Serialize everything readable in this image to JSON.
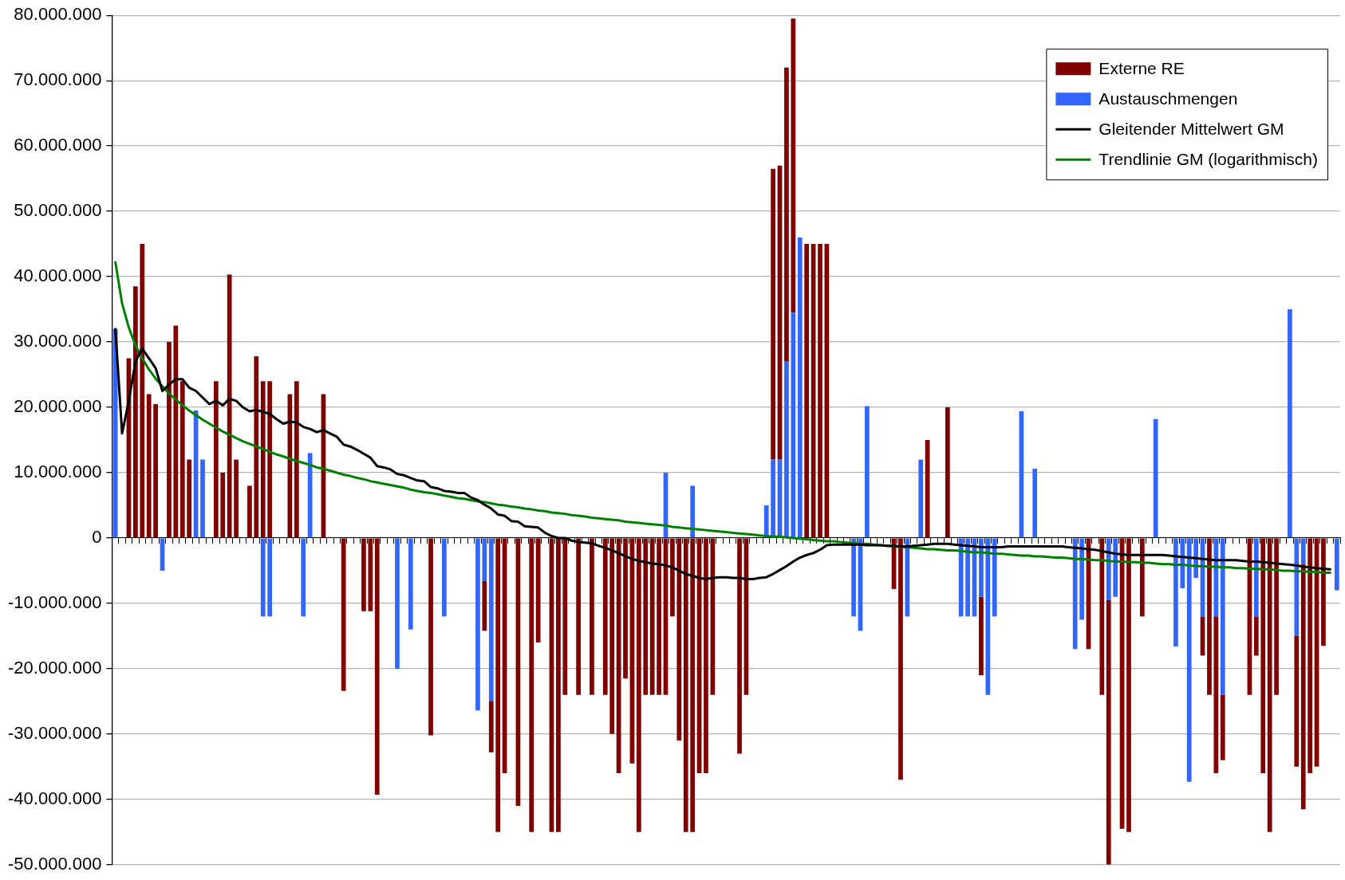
{
  "chart_data": {
    "type": "bar",
    "stacked": true,
    "categories": [
      null,
      null,
      null,
      null,
      null,
      null,
      null,
      null,
      null,
      null,
      null,
      null,
      null,
      null,
      null,
      null,
      null,
      null,
      null,
      null,
      null,
      null,
      null,
      null,
      null,
      null,
      null,
      null,
      null,
      null,
      null,
      null,
      null,
      null,
      null,
      null,
      null,
      null,
      null,
      null,
      null,
      null,
      null,
      null,
      null,
      null,
      null,
      null,
      null,
      null,
      null,
      null,
      null,
      null,
      null,
      null,
      null,
      null,
      null,
      null,
      null,
      null,
      null,
      null,
      null,
      null,
      null,
      null,
      null,
      null,
      null,
      null,
      null,
      null,
      null,
      null,
      null,
      null,
      null,
      null,
      null,
      null,
      null,
      null,
      null,
      null,
      null,
      null,
      null,
      null,
      null,
      null,
      null,
      null,
      null,
      null,
      null,
      null,
      null,
      null,
      null,
      null,
      null,
      null,
      null,
      null,
      null,
      null,
      null,
      null,
      null,
      null,
      null,
      null,
      null,
      null,
      null,
      null,
      null,
      null,
      null,
      null,
      null,
      null,
      null,
      null,
      null,
      null,
      null,
      null,
      null,
      null,
      null,
      null,
      null,
      null,
      null,
      null,
      null,
      null,
      null,
      null,
      null,
      null,
      null,
      null,
      null,
      null,
      null,
      null,
      null,
      null,
      null,
      null,
      null,
      null,
      null,
      null,
      null,
      null,
      null,
      null,
      null,
      null,
      null,
      null,
      null,
      null,
      null,
      null,
      null,
      null,
      null,
      null,
      null,
      null,
      null,
      null,
      null,
      null,
      null,
      null,
      null
    ],
    "series": [
      {
        "name": "Austauschmengen",
        "color": "#3366ff",
        "values": [
          32000000.0,
          null,
          null,
          null,
          null,
          null,
          null,
          -5000000.0,
          null,
          null,
          null,
          null,
          19500000.0,
          12000000.0,
          null,
          null,
          null,
          null,
          null,
          null,
          null,
          null,
          -12000000.0,
          -12000000.0,
          null,
          null,
          null,
          null,
          -12000000.0,
          13000000.0,
          null,
          null,
          null,
          null,
          null,
          null,
          null,
          null,
          null,
          null,
          null,
          null,
          -20000000.0,
          null,
          -14000000.0,
          null,
          null,
          null,
          null,
          -12000000.0,
          null,
          null,
          null,
          null,
          -26400000.0,
          -6600000.0,
          -25000000.0,
          null,
          null,
          null,
          null,
          null,
          null,
          null,
          null,
          null,
          null,
          null,
          null,
          null,
          null,
          null,
          null,
          null,
          null,
          null,
          null,
          null,
          null,
          null,
          null,
          null,
          10000000.0,
          null,
          null,
          null,
          8000000.0,
          null,
          null,
          null,
          null,
          null,
          null,
          null,
          null,
          null,
          null,
          5000000.0,
          12000000.0,
          12000000.0,
          27000000.0,
          34500000.0,
          46000000.0,
          null,
          null,
          null,
          null,
          null,
          null,
          null,
          -12000000.0,
          -14200000.0,
          20200000.0,
          null,
          null,
          null,
          null,
          null,
          -12000000.0,
          null,
          12000000.0,
          null,
          null,
          null,
          null,
          null,
          -12000000.0,
          -12000000.0,
          -12000000.0,
          -9000000.0,
          -24000000.0,
          -12000000.0,
          null,
          null,
          null,
          19400000.0,
          null,
          10600000.0,
          null,
          null,
          null,
          null,
          null,
          -17000000.0,
          -12500000.0,
          null,
          null,
          null,
          -9500000.0,
          -9000000.0,
          null,
          null,
          null,
          null,
          null,
          18200000.0,
          null,
          null,
          -16600000.0,
          -7700000.0,
          -37300000.0,
          -6100000.0,
          -12000000.0,
          null,
          -12000000.0,
          -24000000.0,
          null,
          null,
          null,
          null,
          -12000000.0,
          null,
          null,
          null,
          null,
          35000000.0,
          -15000000.0,
          -4000000.0,
          null,
          null,
          null,
          null,
          -8000000.0
        ]
      },
      {
        "name": "Externe RE",
        "color": "#800000",
        "values": [
          null,
          null,
          27500000.0,
          38500000.0,
          45000000.0,
          22000000.0,
          20500000.0,
          null,
          30000000.0,
          32500000.0,
          24000000.0,
          12000000.0,
          null,
          null,
          null,
          24000000.0,
          10000000.0,
          40300000.0,
          12000000.0,
          null,
          8000000.0,
          27800000.0,
          24000000.0,
          24000000.0,
          null,
          null,
          22000000.0,
          24000000.0,
          null,
          null,
          null,
          22000000.0,
          null,
          null,
          -23400000.0,
          null,
          null,
          -11200000.0,
          -11200000.0,
          -39300000.0,
          null,
          null,
          null,
          null,
          null,
          null,
          null,
          -30200000.0,
          null,
          null,
          null,
          null,
          null,
          null,
          null,
          -7600000.0,
          -7800000.0,
          -45000000.0,
          -36000000.0,
          null,
          -41000000.0,
          null,
          -45000000.0,
          -16000000.0,
          null,
          -45000000.0,
          -45000000.0,
          -24000000.0,
          null,
          -24000000.0,
          null,
          -24000000.0,
          null,
          -24000000.0,
          -30000000.0,
          -36000000.0,
          -21500000.0,
          -34500000.0,
          -45000000.0,
          -24000000.0,
          -24000000.0,
          -24000000.0,
          -24000000.0,
          -12000000.0,
          -31000000.0,
          -45000000.0,
          -45000000.0,
          -36000000.0,
          -36000000.0,
          -24000000.0,
          null,
          null,
          null,
          -33000000.0,
          -24000000.0,
          null,
          null,
          null,
          44500000.0,
          45000000.0,
          45000000.0,
          45000000.0,
          null,
          45000000.0,
          45000000.0,
          45000000.0,
          45000000.0,
          null,
          null,
          null,
          null,
          null,
          null,
          null,
          null,
          null,
          -7800000.0,
          -37000000.0,
          null,
          null,
          null,
          15000000.0,
          null,
          null,
          20000000.0,
          null,
          null,
          null,
          null,
          -12000000.0,
          null,
          null,
          null,
          null,
          null,
          null,
          null,
          null,
          null,
          null,
          null,
          null,
          null,
          null,
          null,
          -17000000.0,
          null,
          -24000000.0,
          -40500000.0,
          null,
          -44500000.0,
          -45000000.0,
          null,
          -12000000.0,
          null,
          null,
          null,
          null,
          null,
          null,
          null,
          null,
          -6000000.0,
          -24000000.0,
          -24000000.0,
          -10000000.0,
          null,
          null,
          null,
          -24000000.0,
          -6000000.0,
          -36000000.0,
          -45000000.0,
          -24000000.0,
          null,
          null,
          -20000000.0,
          -37500000.0,
          -36000000.0,
          -35000000.0,
          -16500000.0,
          null,
          null
        ]
      },
      {
        "name": "Gleitender Mittelwert GM",
        "type": "line",
        "color": "#000000",
        "values": [
          32000000.0,
          16000000.0,
          21000000.0,
          27000000.0,
          29000000.0,
          27500000.0,
          26000000.0,
          22500000.0,
          23500000.0,
          24300000.0,
          24300000.0,
          23000000.0,
          22500000.0,
          21500000.0,
          20500000.0,
          21000000.0,
          20300000.0,
          21300000.0,
          21000000.0,
          20000000.0,
          19400000.0,
          19600000.0,
          19300000.0,
          19000000.0,
          18200000.0,
          17500000.0,
          17800000.0,
          17700000.0,
          17000000.0,
          16700000.0,
          16200000.0,
          16500000.0,
          16000000.0,
          15500000.0,
          14300000.0,
          14000000.0,
          13500000.0,
          12900000.0,
          12300000.0,
          11000000.0,
          10800000.0,
          10500000.0,
          9800000.0,
          9600000.0,
          9200000.0,
          8800000.0,
          8700000.0,
          7800000.0,
          7600000.0,
          7200000.0,
          7100000.0,
          6900000.0,
          6900000.0,
          6200000.0,
          5800000.0,
          5100000.0,
          4500000.0,
          3600000.0,
          3400000.0,
          2600000.0,
          2500000.0,
          1800000.0,
          1700000.0,
          1600000.0,
          800000.0,
          300000.0,
          0,
          0,
          -400000.0,
          -600000.0,
          -700000.0,
          -800000.0,
          -1200000.0,
          -1500000.0,
          -1900000.0,
          -2300000.0,
          -2800000.0,
          -3200000.0,
          -3500000.0,
          -3700000.0,
          -3900000.0,
          -4000000.0,
          -4200000.0,
          -4500000.0,
          -5000000.0,
          -5500000.0,
          -5800000.0,
          -6100000.0,
          -6300000.0,
          -6100000.0,
          -6000000.0,
          -6000000.0,
          -6100000.0,
          -6100000.0,
          -6300000.0,
          -6300000.0,
          -6100000.0,
          -6000000.0,
          -5500000.0,
          -4900000.0,
          -4300000.0,
          -3600000.0,
          -3000000.0,
          -2600000.0,
          -2300000.0,
          -1800000.0,
          -1100000.0,
          -1000000.0,
          -1000000.0,
          -1000000.0,
          -1000000.0,
          -1000000.0,
          -1100000.0,
          -1100000.0,
          -1100000.0,
          -1200000.0,
          -1200000.0,
          -1300000.0,
          -1300000.0,
          -1200000.0,
          -1100000.0,
          -1000000.0,
          -900000.0,
          -900000.0,
          -900000.0,
          -1000000.0,
          -1100000.0,
          -1200000.0,
          -1300000.0,
          -1400000.0,
          -1400000.0,
          -1400000.0,
          -1400000.0,
          -1300000.0,
          -1300000.0,
          -1300000.0,
          -1300000.0,
          -1300000.0,
          -1300000.0,
          -1300000.0,
          -1300000.0,
          -1300000.0,
          -1400000.0,
          -1500000.0,
          -1600000.0,
          -1700000.0,
          -1800000.0,
          -2000000.0,
          -2200000.0,
          -2400000.0,
          -2500000.0,
          -2600000.0,
          -2600000.0,
          -2600000.0,
          -2600000.0,
          -2600000.0,
          -2600000.0,
          -2700000.0,
          -2800000.0,
          -2900000.0,
          -3000000.0,
          -3100000.0,
          -3200000.0,
          -3300000.0,
          -3400000.0,
          -3400000.0,
          -3400000.0,
          -3400000.0,
          -3500000.0,
          -3600000.0,
          -3600000.0,
          -3700000.0,
          -3800000.0,
          -3900000.0,
          -4000000.0,
          -4100000.0,
          -4200000.0,
          -4400000.0,
          -4500000.0,
          -4600000.0,
          -4700000.0,
          -4800000.0,
          null
        ]
      },
      {
        "name": "Trendlinie GM (logarithmisch)",
        "type": "line",
        "color": "#008000",
        "values": [
          42200000.0,
          35900000.0,
          32200000.0,
          29500000.0,
          27500000.0,
          25800000.0,
          24400000.0,
          23200000.0,
          22100000.0,
          21200000.0,
          20300000.0,
          19500000.0,
          18800000.0,
          18100000.0,
          17500000.0,
          16900000.0,
          16300000.0,
          15800000.0,
          15300000.0,
          14800000.0,
          14400000.0,
          14000000.0,
          13600000.0,
          13200000.0,
          12800000.0,
          12500000.0,
          12100000.0,
          11800000.0,
          11500000.0,
          11200000.0,
          10800000.0,
          10600000.0,
          10300000.0,
          10000000.0,
          9700000.0,
          9500000.0,
          9200000.0,
          9000000.0,
          8700000.0,
          8500000.0,
          8300000.0,
          8100000.0,
          7900000.0,
          7700000.0,
          7400000.0,
          7200000.0,
          7000000.0,
          6900000.0,
          6700000.0,
          6500000.0,
          6300000.0,
          6100000.0,
          6000000.0,
          5800000.0,
          5600000.0,
          5500000.0,
          5300000.0,
          5100000.0,
          5000000.0,
          4800000.0,
          4700000.0,
          4500000.0,
          4400000.0,
          4200000.0,
          4100000.0,
          3900000.0,
          3800000.0,
          3700000.0,
          3500000.0,
          3400000.0,
          3300000.0,
          3100000.0,
          3000000.0,
          2900000.0,
          2800000.0,
          2700000.0,
          2500000.0,
          2400000.0,
          2300000.0,
          2200000.0,
          2100000.0,
          2000000.0,
          1900000.0,
          1700000.0,
          1600000.0,
          1500000.0,
          1400000.0,
          1300000.0,
          1200000.0,
          1100000.0,
          1000000.0,
          900000.0,
          800000.0,
          700000.0,
          600000.0,
          500000.0,
          400000.0,
          300000.0,
          200000.0,
          200000.0,
          100000.0,
          0,
          -100000.0,
          -200000.0,
          -300000.0,
          -400000.0,
          -500000.0,
          -500000.0,
          -600000.0,
          -700000.0,
          -800000.0,
          -900000.0,
          -900000.0,
          -1000000.0,
          -1100000.0,
          -1200000.0,
          -1300000.0,
          -1400000.0,
          -1400000.0,
          -1500000.0,
          -1600000.0,
          -1700000.0,
          -1700000.0,
          -1800000.0,
          -1900000.0,
          -1900000.0,
          -2000000.0,
          -2100000.0,
          -2200000.0,
          -2200000.0,
          -2300000.0,
          -2400000.0,
          -2400000.0,
          -2500000.0,
          -2600000.0,
          -2700000.0,
          -2700000.0,
          -2800000.0,
          -2800000.0,
          -2900000.0,
          -3000000.0,
          -3000000.0,
          -3100000.0,
          -3200000.0,
          -3200000.0,
          -3300000.0,
          -3400000.0,
          -3400000.0,
          -3500000.0,
          -3600000.0,
          -3600000.0,
          -3700000.0,
          -3700000.0,
          -3800000.0,
          -3800000.0,
          -3900000.0,
          -4000000.0,
          -4000000.0,
          -4100000.0,
          -4100000.0,
          -4200000.0,
          -4300000.0,
          -4300000.0,
          -4400000.0,
          -4400000.0,
          -4500000.0,
          -4500000.0,
          -4600000.0,
          -4600000.0,
          -4700000.0,
          -4700000.0,
          -4800000.0,
          -4800000.0,
          -4900000.0,
          -5000000.0,
          -5000000.0,
          -5100000.0,
          -5100000.0,
          -5200000.0,
          -5200000.0,
          -5300000.0,
          -5300000.0,
          null
        ]
      }
    ],
    "ylim": [
      -50000000.0,
      80000000.0
    ],
    "yticks": [
      {
        "value": -50000000.0,
        "label": "-50.000.000"
      },
      {
        "value": -40000000.0,
        "label": "-40.000.000"
      },
      {
        "value": -30000000.0,
        "label": "-30.000.000"
      },
      {
        "value": -20000000.0,
        "label": "-20.000.000"
      },
      {
        "value": -10000000.0,
        "label": "-10.000.000"
      },
      {
        "value": 0,
        "label": "0"
      },
      {
        "value": 10000000.0,
        "label": "10.000.000"
      },
      {
        "value": 20000000.0,
        "label": "20.000.000"
      },
      {
        "value": 30000000.0,
        "label": "30.000.000"
      },
      {
        "value": 40000000.0,
        "label": "40.000.000"
      },
      {
        "value": 50000000.0,
        "label": "50.000.000"
      },
      {
        "value": 60000000.0,
        "label": "60.000.000"
      },
      {
        "value": 70000000.0,
        "label": "70.000.000"
      },
      {
        "value": 80000000.0,
        "label": "80.000.000"
      }
    ],
    "grid": "y",
    "legend": "top right"
  }
}
